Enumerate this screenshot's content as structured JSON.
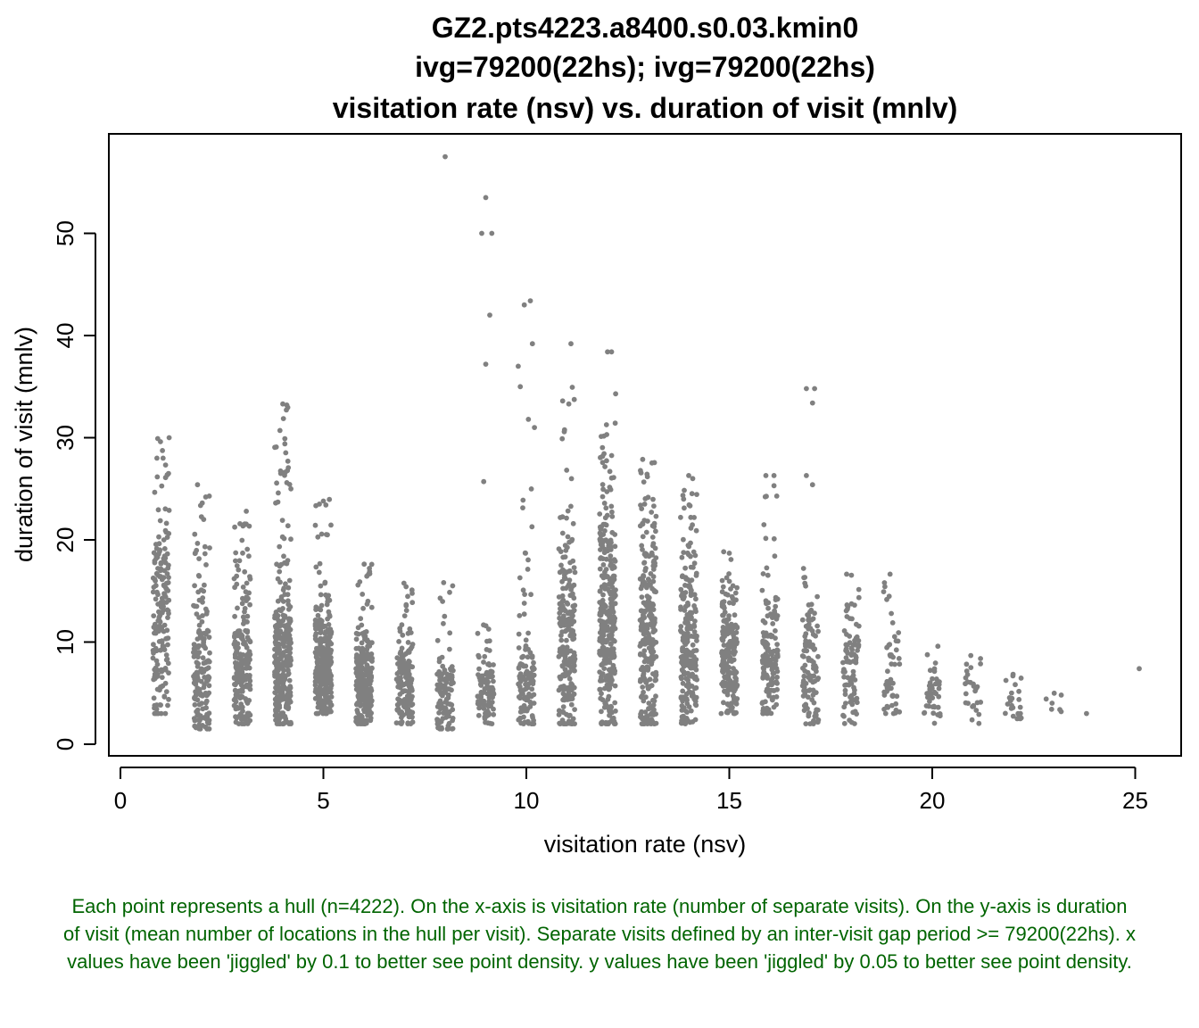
{
  "chart_data": {
    "type": "scatter",
    "title_lines": [
      "GZ2.pts4223.a8400.s0.03.kmin0",
      "ivg=79200(22hs); ivg=79200(22hs)",
      "visitation rate (nsv) vs. duration of visit (mnlv)"
    ],
    "xlabel": "visitation rate (nsv)",
    "ylabel": "duration of visit (mnlv)",
    "xlim": [
      -0.5,
      26
    ],
    "ylim": [
      -1,
      60
    ],
    "x_ticks": [
      0,
      5,
      10,
      15,
      20,
      25
    ],
    "y_ticks": [
      0,
      10,
      20,
      30,
      40,
      50
    ],
    "x_tick_labels": [
      "0",
      "5",
      "10",
      "15",
      "20",
      "25"
    ],
    "y_tick_labels": [
      "0",
      "10",
      "20",
      "30",
      "40",
      "50"
    ],
    "point_color": "#808080",
    "grid": false,
    "legend": "none",
    "series": [
      {
        "note": "columns of jittered points per visitation rate; count = approx points, range = [min,max] y, center = typical y",
        "columns": [
          {
            "x": 1,
            "count": 180,
            "range": [
              3,
              30
            ],
            "center": 12
          },
          {
            "x": 2,
            "count": 170,
            "range": [
              1.5,
              25.5
            ],
            "center": 8
          },
          {
            "x": 3,
            "count": 200,
            "range": [
              2,
              23
            ],
            "center": 7
          },
          {
            "x": 4,
            "count": 320,
            "range": [
              2,
              33
            ],
            "center": 8
          },
          {
            "x": 5,
            "count": 300,
            "range": [
              3,
              24
            ],
            "center": 8
          },
          {
            "x": 6,
            "count": 280,
            "range": [
              2,
              18
            ],
            "center": 6
          },
          {
            "x": 7,
            "count": 160,
            "range": [
              2,
              16
            ],
            "center": 6
          },
          {
            "x": 8,
            "count": 110,
            "range": [
              1.5,
              16
            ],
            "center": 5
          },
          {
            "x": 9,
            "count": 100,
            "range": [
              2,
              14
            ],
            "center": 5
          },
          {
            "x": 10,
            "count": 120,
            "range": [
              2,
              25
            ],
            "center": 6
          },
          {
            "x": 11,
            "count": 230,
            "range": [
              2,
              35
            ],
            "center": 10
          },
          {
            "x": 12,
            "count": 320,
            "range": [
              2,
              32
            ],
            "center": 12
          },
          {
            "x": 13,
            "count": 260,
            "range": [
              2,
              28
            ],
            "center": 11
          },
          {
            "x": 14,
            "count": 230,
            "range": [
              2,
              26
            ],
            "center": 10
          },
          {
            "x": 15,
            "count": 200,
            "range": [
              3,
              19
            ],
            "center": 9
          },
          {
            "x": 16,
            "count": 150,
            "range": [
              3,
              26
            ],
            "center": 8
          },
          {
            "x": 17,
            "count": 110,
            "range": [
              2,
              18
            ],
            "center": 8
          },
          {
            "x": 18,
            "count": 90,
            "range": [
              2,
              18
            ],
            "center": 7
          },
          {
            "x": 19,
            "count": 55,
            "range": [
              3,
              17
            ],
            "center": 6
          },
          {
            "x": 20,
            "count": 40,
            "range": [
              2,
              10.5
            ],
            "center": 5
          },
          {
            "x": 21,
            "count": 28,
            "range": [
              2,
              9.5
            ],
            "center": 5
          },
          {
            "x": 22,
            "count": 25,
            "range": [
              2.5,
              7
            ],
            "center": 4.5
          },
          {
            "x": 23,
            "count": 7,
            "range": [
              3,
              5
            ],
            "center": 4.5
          }
        ],
        "outliers": [
          [
            8,
            57.5
          ],
          [
            9,
            53.5
          ],
          [
            8.9,
            50
          ],
          [
            9.15,
            50
          ],
          [
            9.1,
            42
          ],
          [
            9,
            37.2
          ],
          [
            8.95,
            25.7
          ],
          [
            10.1,
            43.4
          ],
          [
            9.95,
            43
          ],
          [
            10.15,
            39.2
          ],
          [
            9.8,
            37
          ],
          [
            9.85,
            35
          ],
          [
            10.2,
            31
          ],
          [
            10.05,
            31.8
          ],
          [
            11.1,
            39.2
          ],
          [
            12,
            38.4
          ],
          [
            12.1,
            38.4
          ],
          [
            12.2,
            34.3
          ],
          [
            16.9,
            34.8
          ],
          [
            17.1,
            34.8
          ],
          [
            17.05,
            33.4
          ],
          [
            16.9,
            26.3
          ],
          [
            17.05,
            25.4
          ],
          [
            4,
            33.3
          ],
          [
            4.1,
            33.2
          ],
          [
            4.05,
            29.9
          ],
          [
            4.05,
            29.4
          ],
          [
            3.95,
            26.5
          ],
          [
            4.1,
            25.6
          ],
          [
            4.2,
            25
          ],
          [
            14,
            26.3
          ],
          [
            14.1,
            26
          ],
          [
            13.8,
            22.2
          ],
          [
            15.9,
            26.3
          ],
          [
            16.1,
            26.3
          ],
          [
            16.1,
            25.3
          ],
          [
            23.8,
            3
          ],
          [
            25.1,
            7.4
          ],
          [
            1.2,
            30
          ],
          [
            0.9,
            28
          ],
          [
            1.05,
            28
          ],
          [
            2.1,
            24.2
          ],
          [
            1.9,
            25.4
          ],
          [
            2.05,
            22
          ],
          [
            3.1,
            22.8
          ],
          [
            3.05,
            21.5
          ],
          [
            5,
            23.8
          ],
          [
            4.9,
            23.5
          ],
          [
            5.1,
            20.5
          ]
        ]
      }
    ]
  },
  "caption_text": "Each point represents a hull (n=4222). On the x-axis is visitation rate (number of separate visits). On the y-axis is duration of visit (mean number of locations in the hull per visit). Separate visits defined by an inter-visit gap period >= 79200(22hs). x values have been 'jiggled' by 0.1 to better see point density. y values have been 'jiggled' by 0.05 to better see point density."
}
